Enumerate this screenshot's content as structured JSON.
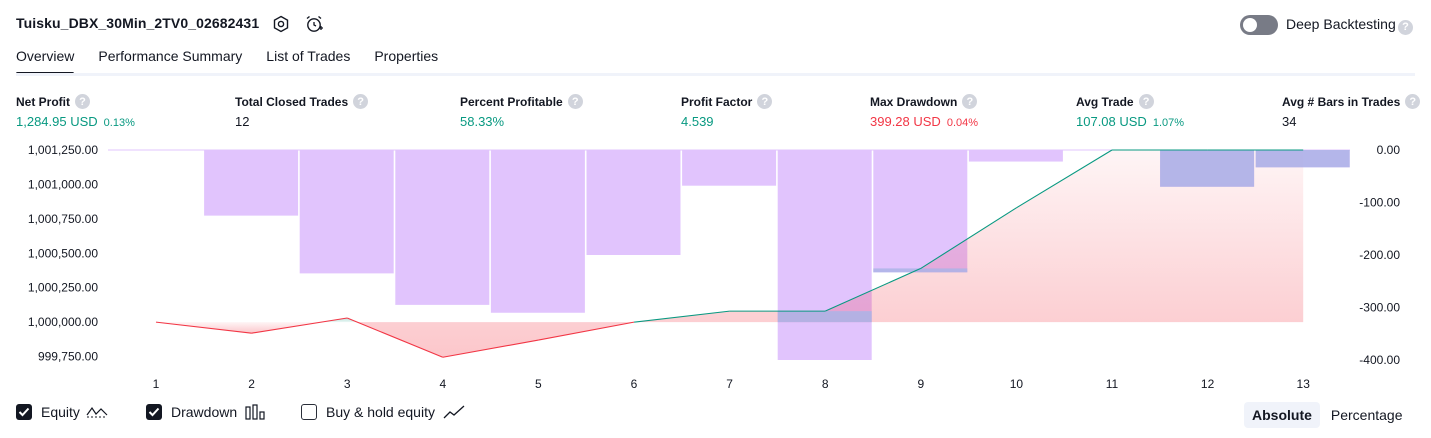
{
  "header": {
    "title": "Tuisku_DBX_30Min_2TV0_02682431",
    "icons": [
      "settings-icon",
      "alarm-add-icon"
    ],
    "deep_backtesting_label": "Deep Backtesting",
    "deep_backtesting_enabled": false,
    "help_glyph": "?"
  },
  "tabs": [
    {
      "label": "Overview",
      "active": true
    },
    {
      "label": "Performance Summary",
      "active": false
    },
    {
      "label": "List of Trades",
      "active": false
    },
    {
      "label": "Properties",
      "active": false
    }
  ],
  "metrics": {
    "net_profit": {
      "label": "Net Profit",
      "value": "1,284.95 USD",
      "pct": "0.13%"
    },
    "total_closed_trades": {
      "label": "Total Closed Trades",
      "value": "12"
    },
    "percent_profitable": {
      "label": "Percent Profitable",
      "value": "58.33%"
    },
    "profit_factor": {
      "label": "Profit Factor",
      "value": "4.539"
    },
    "max_drawdown": {
      "label": "Max Drawdown",
      "value": "399.28 USD",
      "pct": "0.04%"
    },
    "avg_trade": {
      "label": "Avg Trade",
      "value": "107.08 USD",
      "pct": "1.07%"
    },
    "avg_bars": {
      "label": "Avg # Bars in Trades",
      "value": "34"
    }
  },
  "colors": {
    "profit_green": "#089981",
    "loss_red": "#f23645",
    "drawdown_purple": "#e1c4fd",
    "drawdown_overlap": "#abb4e6"
  },
  "chart_data": {
    "type": "line",
    "x": [
      1,
      2,
      3,
      4,
      5,
      6,
      7,
      8,
      9,
      10,
      11,
      12,
      13
    ],
    "left_axis": {
      "ticks": [
        "1,001,250.00",
        "1,001,000.00",
        "1,000,750.00",
        "1,000,500.00",
        "1,000,250.00",
        "1,000,000.00",
        "999,750.00"
      ],
      "range": [
        999725,
        1001250
      ]
    },
    "right_axis": {
      "ticks": [
        "0.00",
        "-100.00",
        "-200.00",
        "-300.00",
        "-400.00"
      ],
      "range": [
        -400,
        0
      ]
    },
    "series": [
      {
        "name": "Equity",
        "values": [
          1000000,
          999920,
          1000030,
          999745,
          999870,
          1000000,
          1000080,
          1000080,
          1000390,
          1000830,
          1001250,
          1001250,
          1001250
        ]
      },
      {
        "name": "Drawdown",
        "values": [
          0,
          -125,
          -235,
          -295,
          -310,
          -200,
          -68,
          -400,
          -233,
          -22,
          0,
          -70,
          -33
        ]
      }
    ],
    "grid": false
  },
  "legend": {
    "equity": {
      "label": "Equity",
      "checked": true
    },
    "drawdown": {
      "label": "Drawdown",
      "checked": true
    },
    "buy_hold": {
      "label": "Buy & hold equity",
      "checked": false
    }
  },
  "view_mode": {
    "absolute": "Absolute",
    "percentage": "Percentage",
    "selected": "Absolute"
  }
}
